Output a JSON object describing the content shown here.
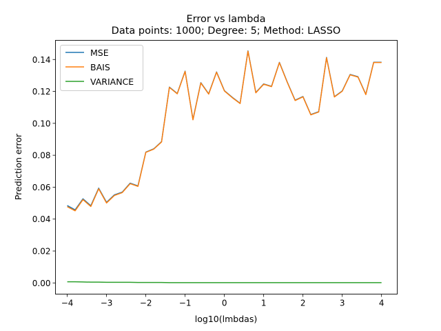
{
  "chart_data": {
    "type": "line",
    "title_line1": "Error vs lambda",
    "title_line2": "Data points: 1000; Degree: 5; Method: LASSO",
    "xlabel": "log10(lmbdas)",
    "ylabel": "Prediction error",
    "xlim": [
      -4.3,
      4.4
    ],
    "ylim": [
      -0.007,
      0.152
    ],
    "xticks": [
      -4,
      -3,
      -2,
      -1,
      0,
      1,
      2,
      3,
      4
    ],
    "xtick_labels": [
      "−4",
      "−3",
      "−2",
      "−1",
      "0",
      "1",
      "2",
      "3",
      "4"
    ],
    "yticks": [
      0.0,
      0.02,
      0.04,
      0.06,
      0.08,
      0.1,
      0.12,
      0.14
    ],
    "ytick_labels": [
      "0.00",
      "0.02",
      "0.04",
      "0.06",
      "0.08",
      "0.10",
      "0.12",
      "0.14"
    ],
    "legend_position": "top-left",
    "grid": false,
    "x": [
      -4.0,
      -3.8,
      -3.6,
      -3.4,
      -3.2,
      -3.0,
      -2.8,
      -2.6,
      -2.4,
      -2.2,
      -2.0,
      -1.8,
      -1.6,
      -1.4,
      -1.2,
      -1.0,
      -0.8,
      -0.6,
      -0.4,
      -0.2,
      0.0,
      0.2,
      0.4,
      0.6,
      0.8,
      1.0,
      1.2,
      1.4,
      1.6,
      1.8,
      2.0,
      2.2,
      2.4,
      2.6,
      2.8,
      3.0,
      3.2,
      3.4,
      3.6,
      3.8,
      4.0
    ],
    "series": [
      {
        "name": "MSE",
        "color": "#1f77b4",
        "values": [
          0.0485,
          0.0458,
          0.0527,
          0.0484,
          0.0594,
          0.0505,
          0.0552,
          0.0569,
          0.0625,
          0.0608,
          0.082,
          0.084,
          0.0885,
          0.1227,
          0.1187,
          0.1327,
          0.1024,
          0.1255,
          0.1185,
          0.1322,
          0.1205,
          0.1163,
          0.1126,
          0.1454,
          0.1193,
          0.1247,
          0.1232,
          0.1382,
          0.1259,
          0.1145,
          0.1168,
          0.1055,
          0.1073,
          0.1413,
          0.1167,
          0.1203,
          0.1306,
          0.1292,
          0.1182,
          0.1383,
          0.1383
        ]
      },
      {
        "name": "BAIS",
        "color": "#ff7f0e",
        "values": [
          0.0478,
          0.0452,
          0.0522,
          0.0479,
          0.059,
          0.0501,
          0.0548,
          0.0566,
          0.0622,
          0.0605,
          0.0818,
          0.0838,
          0.0883,
          0.1225,
          0.1185,
          0.1325,
          0.1022,
          0.1253,
          0.1183,
          0.132,
          0.1203,
          0.1161,
          0.1124,
          0.1452,
          0.1191,
          0.1245,
          0.123,
          0.138,
          0.1257,
          0.1143,
          0.1166,
          0.1053,
          0.1071,
          0.1411,
          0.1165,
          0.1201,
          0.1304,
          0.129,
          0.118,
          0.1381,
          0.1381
        ]
      },
      {
        "name": "VARIANCE",
        "color": "#2ca02c",
        "values": [
          0.0007,
          0.0007,
          0.0006,
          0.0005,
          0.0005,
          0.0004,
          0.0004,
          0.0004,
          0.0004,
          0.0003,
          0.0003,
          0.0003,
          0.0003,
          0.0002,
          0.0002,
          0.0002,
          0.0002,
          0.0002,
          0.0002,
          0.0002,
          0.0002,
          0.0002,
          0.0002,
          0.0002,
          0.0002,
          0.0002,
          0.0002,
          0.0002,
          0.0002,
          0.0002,
          0.0002,
          0.0002,
          0.0002,
          0.0002,
          0.0002,
          0.0002,
          0.0002,
          0.0002,
          0.0002,
          0.0002,
          0.0002
        ]
      }
    ]
  }
}
